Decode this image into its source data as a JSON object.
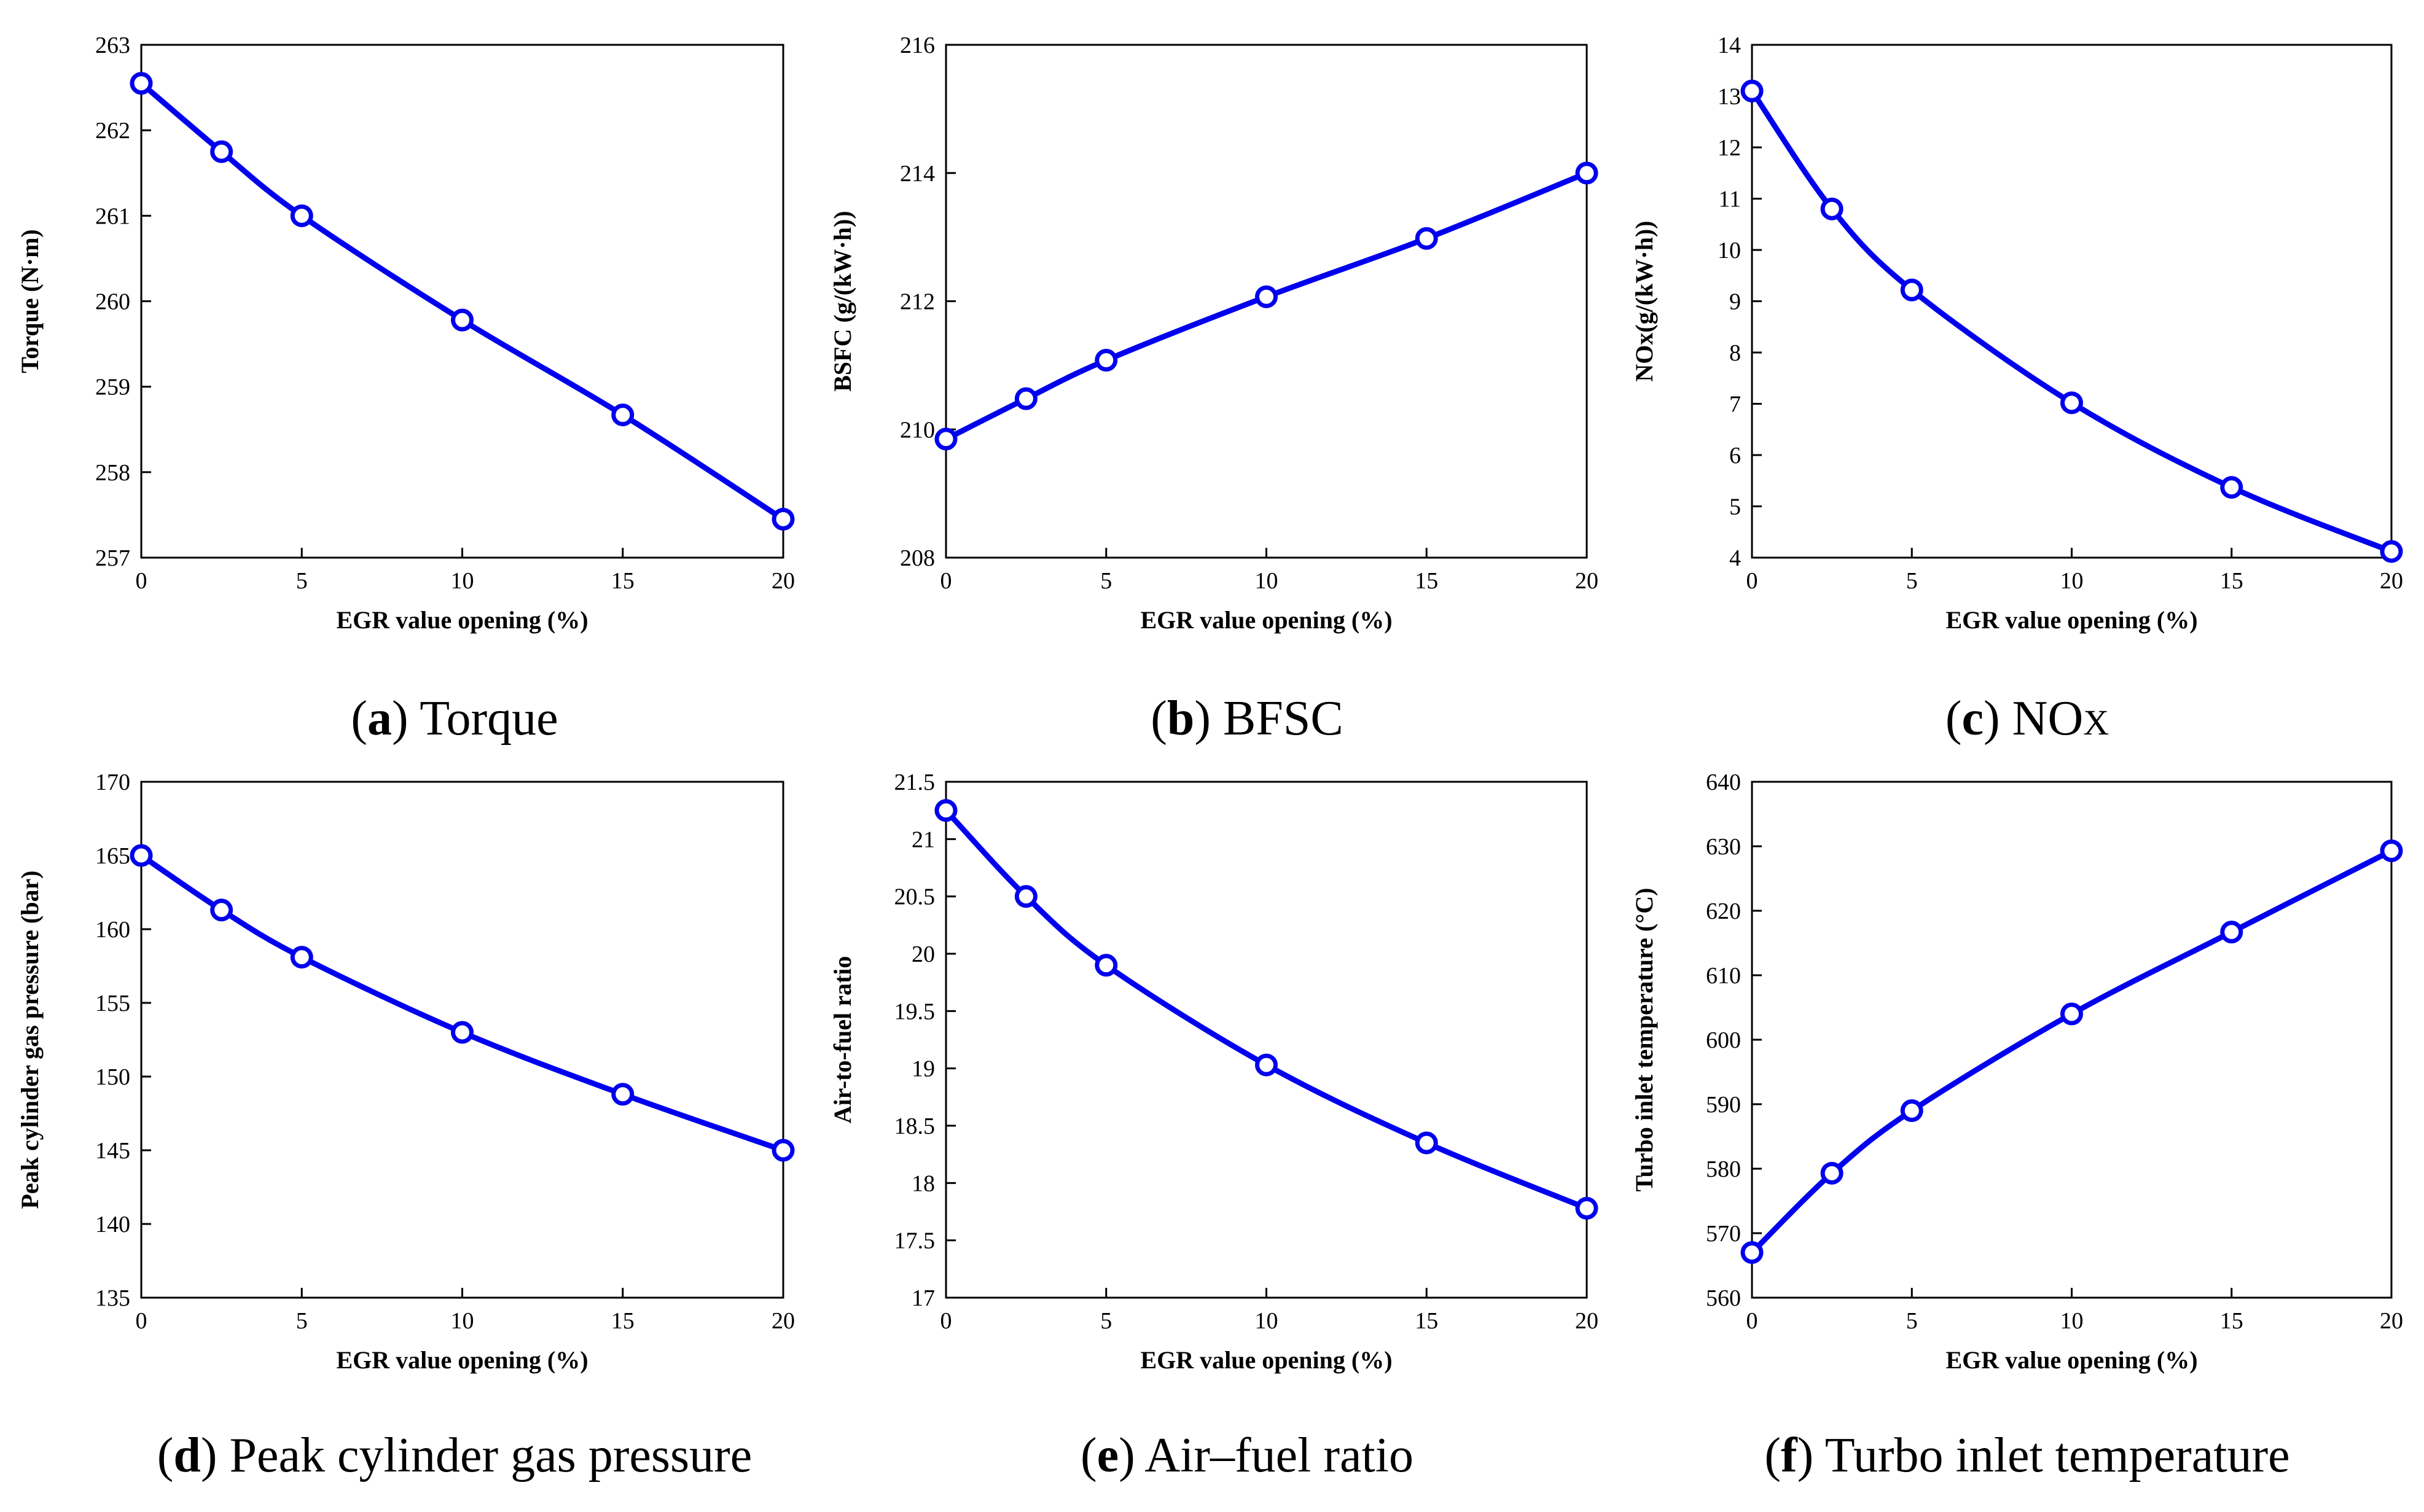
{
  "figure": {
    "color": "#0000ee"
  },
  "chart_data": [
    {
      "id": "a",
      "type": "line",
      "caption_letter": "a",
      "caption_text": "Torque",
      "xlabel": "EGR value opening (%)",
      "ylabel": "Torque (N·m)",
      "x": [
        0,
        2.5,
        5,
        10,
        15,
        20
      ],
      "values": [
        262.55,
        261.75,
        261.0,
        259.78,
        258.67,
        257.45
      ],
      "xlim": [
        0,
        20
      ],
      "ylim": [
        257,
        263
      ],
      "xticks": [
        0,
        5,
        10,
        15,
        20
      ],
      "xtick_labels": [
        "0",
        "5",
        "10",
        "15",
        "20"
      ],
      "yticks": [
        257,
        258,
        259,
        260,
        261,
        262,
        263
      ],
      "ytick_labels": [
        "257",
        "258",
        "259",
        "260",
        "261",
        "262",
        "263"
      ],
      "grid": false
    },
    {
      "id": "b",
      "type": "line",
      "caption_letter": "b",
      "caption_text": "BFSC",
      "xlabel": "EGR value opening (%)",
      "ylabel": "BSFC (g/(kW·h))",
      "x": [
        0,
        2.5,
        5,
        10,
        15,
        20
      ],
      "values": [
        209.85,
        210.48,
        211.08,
        212.07,
        212.98,
        214.0
      ],
      "xlim": [
        0,
        20
      ],
      "ylim": [
        208,
        216
      ],
      "xticks": [
        0,
        5,
        10,
        15,
        20
      ],
      "xtick_labels": [
        "0",
        "5",
        "10",
        "15",
        "20"
      ],
      "yticks": [
        208,
        210,
        212,
        214,
        216
      ],
      "ytick_labels": [
        "208",
        "210",
        "212",
        "214",
        "216"
      ],
      "grid": false
    },
    {
      "id": "c",
      "type": "line",
      "caption_letter": "c",
      "caption_text": "NO",
      "caption_sub": "X",
      "xlabel": "EGR value opening (%)",
      "ylabel": "NOx(g/(kW·h))",
      "x": [
        0,
        2.5,
        5,
        10,
        15,
        20
      ],
      "values": [
        13.1,
        10.8,
        9.22,
        7.02,
        5.37,
        4.12
      ],
      "xlim": [
        0,
        20
      ],
      "ylim": [
        4,
        14
      ],
      "xticks": [
        0,
        5,
        10,
        15,
        20
      ],
      "xtick_labels": [
        "0",
        "5",
        "10",
        "15",
        "20"
      ],
      "yticks": [
        4,
        5,
        6,
        7,
        8,
        9,
        10,
        11,
        12,
        13,
        14
      ],
      "ytick_labels": [
        "4",
        "5",
        "6",
        "7",
        "8",
        "9",
        "10",
        "11",
        "12",
        "13",
        "14"
      ],
      "grid": false
    },
    {
      "id": "d",
      "type": "line",
      "caption_letter": "d",
      "caption_text": "Peak cylinder gas pressure",
      "xlabel": "EGR value opening (%)",
      "ylabel": "Peak cylinder gas pressure (bar)",
      "x": [
        0,
        2.5,
        5,
        10,
        15,
        20
      ],
      "values": [
        165.0,
        161.3,
        158.1,
        153.0,
        148.8,
        145.0
      ],
      "xlim": [
        0,
        20
      ],
      "ylim": [
        135,
        170
      ],
      "xticks": [
        0,
        5,
        10,
        15,
        20
      ],
      "xtick_labels": [
        "0",
        "5",
        "10",
        "15",
        "20"
      ],
      "yticks": [
        135,
        140,
        145,
        150,
        155,
        160,
        165,
        170
      ],
      "ytick_labels": [
        "135",
        "140",
        "145",
        "150",
        "155",
        "160",
        "165",
        "170"
      ],
      "grid": false
    },
    {
      "id": "e",
      "type": "line",
      "caption_letter": "e",
      "caption_text": "Air–fuel ratio",
      "xlabel": "EGR value opening (%)",
      "ylabel": "Air-to-fuel ratio",
      "x": [
        0,
        2.5,
        5,
        10,
        15,
        20
      ],
      "values": [
        21.25,
        20.5,
        19.9,
        19.03,
        18.35,
        17.78
      ],
      "xlim": [
        0,
        20
      ],
      "ylim": [
        17,
        21.5
      ],
      "xticks": [
        0,
        5,
        10,
        15,
        20
      ],
      "xtick_labels": [
        "0",
        "5",
        "10",
        "15",
        "20"
      ],
      "yticks": [
        17,
        17.5,
        18,
        18.5,
        19,
        19.5,
        20,
        20.5,
        21,
        21.5
      ],
      "ytick_labels": [
        "17",
        "17.5",
        "18",
        "18.5",
        "19",
        "19.5",
        "20",
        "20.5",
        "21",
        "21.5"
      ],
      "grid": false
    },
    {
      "id": "f",
      "type": "line",
      "caption_letter": "f",
      "caption_text": "Turbo inlet temperature",
      "xlabel": "EGR value opening (%)",
      "ylabel": "Turbo inlet temperature (°C)",
      "x": [
        0,
        2.5,
        5,
        10,
        15,
        20
      ],
      "values": [
        567.0,
        579.3,
        589.0,
        604.0,
        616.7,
        629.3
      ],
      "xlim": [
        0,
        20
      ],
      "ylim": [
        560,
        640
      ],
      "xticks": [
        0,
        5,
        10,
        15,
        20
      ],
      "xtick_labels": [
        "0",
        "5",
        "10",
        "15",
        "20"
      ],
      "yticks": [
        560,
        570,
        580,
        590,
        600,
        610,
        620,
        630,
        640
      ],
      "ytick_labels": [
        "560",
        "570",
        "580",
        "590",
        "600",
        "610",
        "620",
        "630",
        "640"
      ],
      "grid": false
    }
  ]
}
